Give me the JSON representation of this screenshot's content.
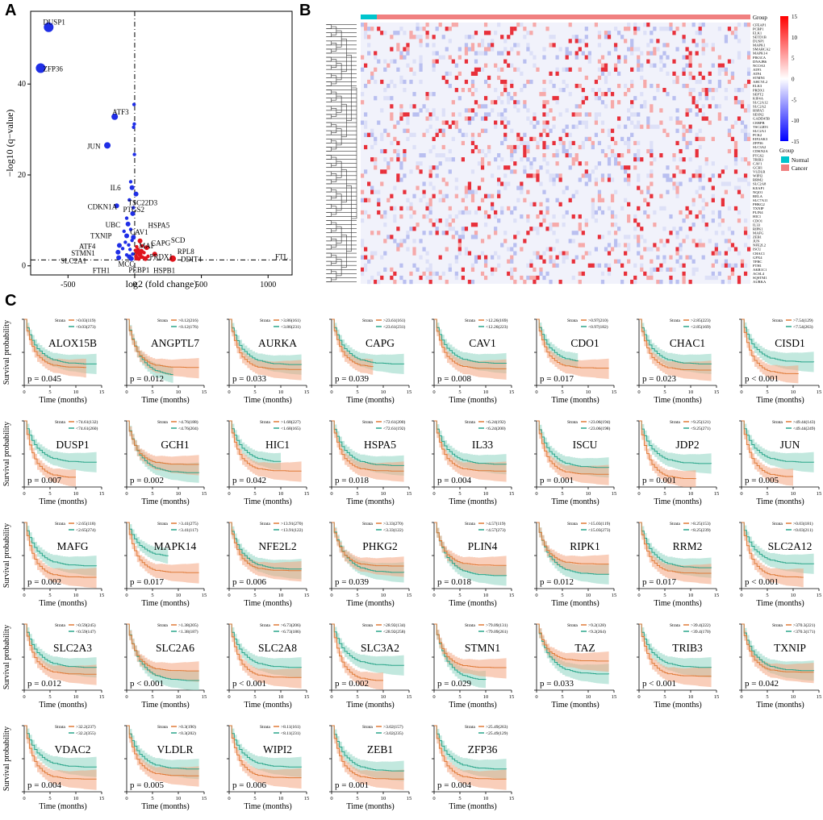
{
  "panels": {
    "a": "A",
    "b": "B",
    "c": "C"
  },
  "colors": {
    "down": "#1f2ee6",
    "up": "#e0141c",
    "high": "#e07b39",
    "low": "#2aa58a",
    "high_fill": "#f4a582",
    "low_fill": "#8fd6c2",
    "normal": "#00c5cd",
    "cancer": "#f08080"
  },
  "chart_data": [
    {
      "type": "scatter",
      "name": "volcano",
      "xlabel": "log2 (fold change)",
      "ylabel": "−log10 (q−value)",
      "xticks": [
        -500,
        0,
        500,
        1000
      ],
      "yticks": [
        0,
        20,
        40
      ],
      "xlim": [
        -780,
        1180
      ],
      "ylim": [
        -2,
        56
      ],
      "threshold_y": 1.3,
      "threshold_label": "FTL",
      "genes": [
        {
          "label": "DUSP1",
          "x": -645,
          "y": 52.5,
          "dir": "down",
          "size": 6
        },
        {
          "label": "ZFP36",
          "x": -705,
          "y": 43.5,
          "dir": "down",
          "size": 6
        },
        {
          "label": "ATF3",
          "x": -150,
          "y": 32.8,
          "dir": "down",
          "size": 4
        },
        {
          "label": "JUN",
          "x": -205,
          "y": 26.5,
          "dir": "down",
          "size": 4
        },
        {
          "label": "IL6",
          "x": -20,
          "y": 17.2,
          "dir": "down",
          "size": 3
        },
        {
          "label": "TSC22D3",
          "x": 10,
          "y": 15.8,
          "dir": "down",
          "size": 3
        },
        {
          "label": "CDKN1A",
          "x": -135,
          "y": 13.2,
          "dir": "down",
          "size": 3
        },
        {
          "label": "PTGS2",
          "x": -15,
          "y": 11.5,
          "dir": "down",
          "size": 3
        },
        {
          "label": "UBC",
          "x": -50,
          "y": 9.2,
          "dir": "down",
          "size": 3
        },
        {
          "label": "TXNIP",
          "x": -60,
          "y": 6.6,
          "dir": "down",
          "size": 3
        },
        {
          "label": "CAV1",
          "x": -10,
          "y": 6.3,
          "dir": "down",
          "size": 3
        },
        {
          "label": "ATF4",
          "x": -115,
          "y": 4.5,
          "dir": "down",
          "size": 3
        },
        {
          "label": "STMN1",
          "x": -125,
          "y": 3.0,
          "dir": "down",
          "size": 3
        },
        {
          "label": "SLC2A1",
          "x": -120,
          "y": 1.8,
          "dir": "down",
          "size": 3
        },
        {
          "label": "MCC",
          "x": -40,
          "y": 2.0,
          "dir": "down",
          "size": 3
        },
        {
          "label": "FTH1",
          "x": -25,
          "y": 1.6,
          "dir": "down",
          "size": 3
        },
        {
          "label": "PEBP1",
          "x": 15,
          "y": 1.7,
          "dir": "up",
          "size": 3
        },
        {
          "label": "HSPB1",
          "x": 80,
          "y": 1.6,
          "dir": "up",
          "size": 3
        },
        {
          "label": "HSPA5",
          "x": 40,
          "y": 5.5,
          "dir": "up",
          "size": 3
        },
        {
          "label": "SCD",
          "x": 90,
          "y": 4.0,
          "dir": "up",
          "size": 3
        },
        {
          "label": "CAPG",
          "x": 50,
          "y": 3.2,
          "dir": "up",
          "size": 3
        },
        {
          "label": "MAF",
          "x": 20,
          "y": 3.0,
          "dir": "up",
          "size": 3
        },
        {
          "label": "PRDX1",
          "x": 40,
          "y": 2.5,
          "dir": "up",
          "size": 3
        },
        {
          "label": "RPL8",
          "x": 150,
          "y": 2.6,
          "dir": "up",
          "size": 3
        },
        {
          "label": "DDIT4",
          "x": 285,
          "y": 1.6,
          "dir": "up",
          "size": 4
        }
      ],
      "extra_down": [
        [
          -5,
          35.5
        ],
        [
          -3,
          31.2
        ],
        [
          -8,
          30.5
        ],
        [
          -2,
          24.5
        ],
        [
          -30,
          18.5
        ],
        [
          -40,
          14.5
        ],
        [
          -10,
          12.8
        ],
        [
          -60,
          10.5
        ],
        [
          -30,
          8.0
        ],
        [
          -80,
          7.6
        ],
        [
          -70,
          5.2
        ],
        [
          -20,
          5.6
        ],
        [
          -90,
          3.8
        ],
        [
          -35,
          3.6
        ],
        [
          -60,
          2.4
        ],
        [
          -15,
          2.6
        ],
        [
          -45,
          4.6
        ]
      ],
      "extra_up": [
        [
          10,
          2.2
        ],
        [
          25,
          3.6
        ],
        [
          60,
          1.9
        ],
        [
          5,
          3.4
        ],
        [
          30,
          1.5
        ],
        [
          70,
          2.9
        ],
        [
          100,
          2.1
        ],
        [
          45,
          1.9
        ],
        [
          15,
          4.2
        ],
        [
          55,
          4.4
        ]
      ]
    },
    {
      "type": "heatmap",
      "name": "expression",
      "group_title": "Group",
      "legend_title": "Group",
      "legend_labels": [
        "Normal",
        "Cancer"
      ],
      "scale_ticks": [
        15,
        10,
        5,
        0,
        -5,
        -10,
        -15
      ],
      "genes": [
        "CFEAP1",
        "PCBP1",
        "ELK1",
        "SETD1B",
        "DUSP1",
        "MAPK1",
        "SMARCA2",
        "MAPK14",
        "PIK3CA",
        "DNAJB6",
        "NCOA3",
        "ATF3",
        "ATF4",
        "STMN1",
        "AHCYL2",
        "ELK3",
        "PRDX1",
        "SEPT2",
        "KIF4A",
        "SLC2A12",
        "SLC2A2",
        "HSPA5",
        "SESN2",
        "GADD45B",
        "CEBPB",
        "TSC22D3",
        "SLC2A1",
        "PCK2",
        "EIF2AK3",
        "ZFP36",
        "SLC3A2",
        "CDKN2A",
        "PTGS2",
        "TRIB3",
        "CAV1",
        "GCH1",
        "VLDLR",
        "WIPI2",
        "RRM2",
        "SLC2A8",
        "KEAP1",
        "NQO1",
        "RELA",
        "SLC7A11",
        "PHKG2",
        "TXNIP",
        "PLIN4",
        "HIC1",
        "CDO1",
        "IL33",
        "RIPK1",
        "MAFG",
        "ZEB1",
        "JUN",
        "NFE2L2",
        "ISCU",
        "CHAC1",
        "GPX4",
        "TFRC",
        "FTH1",
        "AKR1C1",
        "ACSL4",
        "SQSTM1",
        "AURKA"
      ]
    },
    {
      "type": "line",
      "name": "survival-curves",
      "ylabel": "Survival probability",
      "xlabel": "Time (months)",
      "xticks": [
        0,
        5,
        10,
        15
      ],
      "strata_title": "Strata",
      "plots": [
        {
          "gene": "ALOX15B",
          "p": "p = 0.045",
          "hi": ">0.03(119)",
          "lo": "<0.03(273)",
          "hi_end": 0.28,
          "lo_end": 0.33,
          "hi_max": 12,
          "lo_max": 14
        },
        {
          "gene": "ANGPTL7",
          "p": "p = 0.012",
          "hi": ">0.12(216)",
          "lo": "<0.12(176)",
          "hi_end": 0.28,
          "lo_end": 0.15,
          "hi_max": 14,
          "lo_max": 9
        },
        {
          "gene": "AURKA",
          "p": "p = 0.033",
          "hi": ">3.86(161)",
          "lo": "<3.86(231)",
          "hi_end": 0.25,
          "lo_end": 0.32,
          "hi_max": 14,
          "lo_max": 14
        },
        {
          "gene": "CAPG",
          "p": "p = 0.039",
          "hi": ">23.61(161)",
          "lo": "<23.61(231)",
          "hi_end": 0.28,
          "lo_end": 0.33,
          "hi_max": 8,
          "lo_max": 14
        },
        {
          "gene": "CAV1",
          "p": "p = 0.008",
          "hi": ">12.26(169)",
          "lo": "<12.26(223)",
          "hi_end": 0.26,
          "lo_end": 0.34,
          "hi_max": 14,
          "lo_max": 14
        },
        {
          "gene": "CDO1",
          "p": "p = 0.017",
          "hi": ">0.97(210)",
          "lo": "<0.97(182)",
          "hi_end": 0.27,
          "lo_end": 0.35,
          "hi_max": 14,
          "lo_max": 8
        },
        {
          "gene": "CHAC1",
          "p": "p = 0.023",
          "hi": ">2.85(223)",
          "lo": "<2.85(169)",
          "hi_end": 0.24,
          "lo_end": 0.33,
          "hi_max": 14,
          "lo_max": 14
        },
        {
          "gene": "CISD1",
          "p": "p < 0.001",
          "hi": ">7.54(129)",
          "lo": "<7.54(263)",
          "hi_end": 0.18,
          "lo_end": 0.36,
          "hi_max": 11,
          "lo_max": 14
        },
        {
          "gene": "DUSP1",
          "p": "p = 0.007",
          "hi": ">74.61(132)",
          "lo": "<74.61(260)",
          "hi_end": 0.15,
          "lo_end": 0.38,
          "hi_max": 10,
          "lo_max": 14
        },
        {
          "gene": "GCH1",
          "p": "p = 0.002",
          "hi": ">4.76(188)",
          "lo": "<4.76(204)",
          "hi_end": 0.35,
          "lo_end": 0.22,
          "hi_max": 14,
          "lo_max": 14
        },
        {
          "gene": "HIC1",
          "p": "p = 0.042",
          "hi": ">1.68(227)",
          "lo": "<1.68(165)",
          "hi_end": 0.25,
          "lo_end": 0.38,
          "hi_max": 14,
          "lo_max": 10
        },
        {
          "gene": "HSPA5",
          "p": "p = 0.018",
          "hi": ">72.61(200)",
          "lo": "<72.61(192)",
          "hi_end": 0.25,
          "lo_end": 0.33,
          "hi_max": 14,
          "lo_max": 14
        },
        {
          "gene": "IL33",
          "p": "p = 0.004",
          "hi": ">6.24(192)",
          "lo": "<6.24(200)",
          "hi_end": 0.25,
          "lo_end": 0.35,
          "hi_max": 14,
          "lo_max": 14
        },
        {
          "gene": "ISCU",
          "p": "p = 0.001",
          "hi": ">23.06(194)",
          "lo": "<23.06(198)",
          "hi_end": 0.2,
          "lo_end": 0.3,
          "hi_max": 14,
          "lo_max": 14
        },
        {
          "gene": "JDP2",
          "p": "p = 0.001",
          "hi": ">9.25(121)",
          "lo": "<9.25(271)",
          "hi_end": 0.13,
          "lo_end": 0.36,
          "hi_max": 11,
          "lo_max": 14
        },
        {
          "gene": "JUN",
          "p": "p = 0.005",
          "hi": ">49.44(143)",
          "lo": "<49.44(249)",
          "hi_end": 0.16,
          "lo_end": 0.38,
          "hi_max": 10,
          "lo_max": 14
        },
        {
          "gene": "MAFG",
          "p": "p = 0.002",
          "hi": ">2.65(118)",
          "lo": "<2.65(274)",
          "hi_end": 0.18,
          "lo_end": 0.35,
          "hi_max": 14,
          "lo_max": 14
        },
        {
          "gene": "MAPK14",
          "p": "p = 0.017",
          "hi": ">3.41(275)",
          "lo": "<3.41(117)",
          "hi_end": 0.25,
          "lo_end": 0.48,
          "hi_max": 14,
          "lo_max": 8
        },
        {
          "gene": "NFE2L2",
          "p": "p = 0.006",
          "hi": ">13.91(270)",
          "lo": "<13.91(122)",
          "hi_end": 0.28,
          "lo_end": 0.3,
          "hi_max": 14,
          "lo_max": 14
        },
        {
          "gene": "PHKG2",
          "p": "p = 0.039",
          "hi": ">3.33(270)",
          "lo": "<3.33(122)",
          "hi_end": 0.35,
          "lo_end": 0.25,
          "hi_max": 14,
          "lo_max": 14
        },
        {
          "gene": "PLIN4",
          "p": "p = 0.018",
          "hi": ">4.57(119)",
          "lo": "<4.57(273)",
          "hi_end": 0.36,
          "lo_end": 0.2,
          "hi_max": 14,
          "lo_max": 14
        },
        {
          "gene": "RIPK1",
          "p": "p = 0.012",
          "hi": ">15.03(119)",
          "lo": "<15.03(273)",
          "hi_end": 0.38,
          "lo_end": 0.22,
          "hi_max": 14,
          "lo_max": 14
        },
        {
          "gene": "RRM2",
          "p": "p = 0.017",
          "hi": ">8.25(153)",
          "lo": "<8.25(239)",
          "hi_end": 0.24,
          "lo_end": 0.32,
          "hi_max": 14,
          "lo_max": 14
        },
        {
          "gene": "SLC2A12",
          "p": "p < 0.001",
          "hi": ">0.03(181)",
          "lo": "<0.03(211)",
          "hi_end": 0.18,
          "lo_end": 0.38,
          "hi_max": 12,
          "lo_max": 14
        },
        {
          "gene": "SLC2A3",
          "p": "p = 0.012",
          "hi": ">0.59(245)",
          "lo": "<0.59(147)",
          "hi_end": 0.25,
          "lo_end": 0.35,
          "hi_max": 14,
          "lo_max": 14
        },
        {
          "gene": "SLC2A6",
          "p": "p < 0.001",
          "hi": ">1.38(205)",
          "lo": "<1.38(187)",
          "hi_end": 0.3,
          "lo_end": 0.15,
          "hi_max": 14,
          "lo_max": 14
        },
        {
          "gene": "SLC2A8",
          "p": "p < 0.001",
          "hi": ">6.73(206)",
          "lo": "<6.73(186)",
          "hi_end": 0.2,
          "lo_end": 0.35,
          "hi_max": 14,
          "lo_max": 14
        },
        {
          "gene": "SLC3A2",
          "p": "p = 0.002",
          "hi": ">28.92(134)",
          "lo": "<28.92(258)",
          "hi_end": 0.15,
          "lo_end": 0.38,
          "hi_max": 10,
          "lo_max": 14
        },
        {
          "gene": "STMN1",
          "p": "p = 0.029",
          "hi": ">79.09(131)",
          "lo": "<79.09(261)",
          "hi_end": 0.35,
          "lo_end": 0.15,
          "hi_max": 14,
          "lo_max": 10
        },
        {
          "gene": "TAZ",
          "p": "p = 0.033",
          "hi": ">9.2(128)",
          "lo": "<9.2(264)",
          "hi_end": 0.45,
          "lo_end": 0.25,
          "hi_max": 14,
          "lo_max": 14
        },
        {
          "gene": "TRIB3",
          "p": "p < 0.001",
          "hi": ">39.4(222)",
          "lo": "<39.4(170)",
          "hi_end": 0.22,
          "lo_end": 0.35,
          "hi_max": 14,
          "lo_max": 14
        },
        {
          "gene": "TXNIP",
          "p": "p = 0.042",
          "hi": ">370.3(221)",
          "lo": "<370.3(171)",
          "hi_end": 0.28,
          "lo_end": 0.3,
          "hi_max": 14,
          "lo_max": 14
        },
        {
          "gene": "VDAC2",
          "p": "p = 0.004",
          "hi": ">32.2(237)",
          "lo": "<32.2(355)",
          "hi_end": 0.2,
          "lo_end": 0.38,
          "hi_max": 14,
          "lo_max": 14
        },
        {
          "gene": "VLDLR",
          "p": "p = 0.005",
          "hi": ">0.3(190)",
          "lo": "<0.3(202)",
          "hi_end": 0.25,
          "lo_end": 0.35,
          "hi_max": 14,
          "lo_max": 14
        },
        {
          "gene": "WIPI2",
          "p": "p = 0.006",
          "hi": ">8.11(161)",
          "lo": "<8.11(231)",
          "hi_end": 0.22,
          "lo_end": 0.38,
          "hi_max": 14,
          "lo_max": 14
        },
        {
          "gene": "ZEB1",
          "p": "p = 0.001",
          "hi": ">3.02(157)",
          "lo": "<3.02(235)",
          "hi_end": 0.2,
          "lo_end": 0.32,
          "hi_max": 14,
          "lo_max": 14
        },
        {
          "gene": "ZFP36",
          "p": "p = 0.004",
          "hi": ">25.49(263)",
          "lo": "<25.49(129)",
          "hi_end": 0.2,
          "lo_end": 0.35,
          "hi_max": 14,
          "lo_max": 14
        }
      ]
    }
  ]
}
